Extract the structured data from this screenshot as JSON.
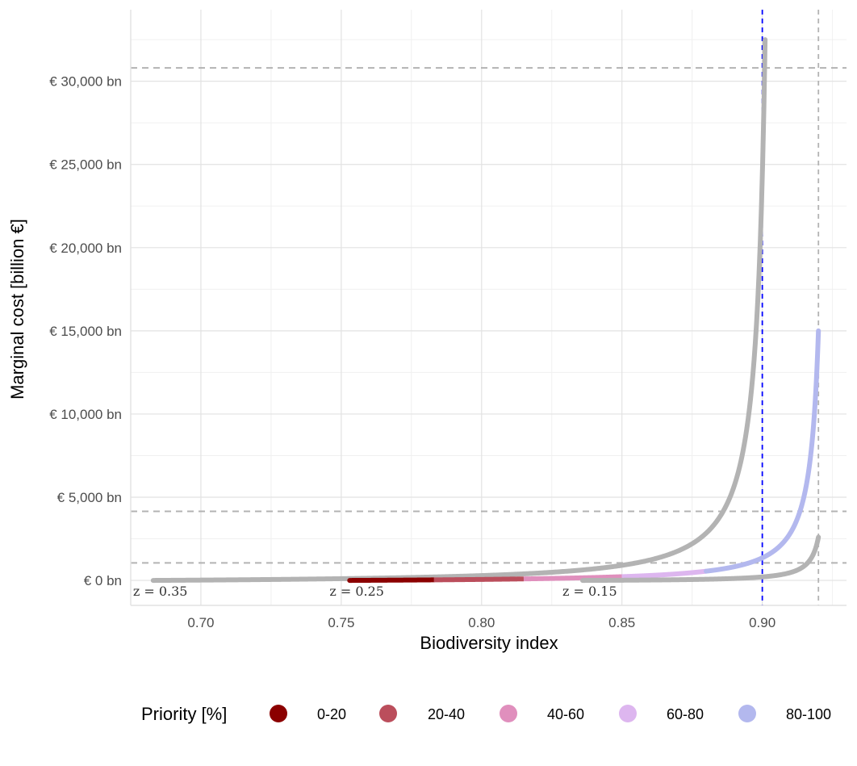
{
  "chart_data": {
    "type": "line",
    "title": "",
    "xlabel": "Biodiversity index",
    "ylabel": "Marginal cost [billion €]",
    "xlim": [
      0.675,
      0.93
    ],
    "ylim": [
      -1500,
      34300
    ],
    "x_ticks": [
      0.7,
      0.75,
      0.8,
      0.85,
      0.9
    ],
    "x_tick_labels": [
      "0.70",
      "0.75",
      "0.80",
      "0.85",
      "0.90"
    ],
    "y_ticks": [
      0,
      5000,
      10000,
      15000,
      20000,
      25000,
      30000
    ],
    "y_tick_labels": [
      "€ 0 bn",
      "€ 5,000 bn",
      "€ 10,000 bn",
      "€ 15,000 bn",
      "€ 20,000 bn",
      "€ 25,000 bn",
      "€ 30,000 bn"
    ],
    "grid": true,
    "series": [
      {
        "label": "z = 0.35",
        "x_start": 0.683,
        "x_end": 0.901,
        "y_end": 32500,
        "priority_colored": false,
        "color": "#b3b3b3"
      },
      {
        "label": "z = 0.25",
        "x_start": 0.753,
        "x_end": 0.92,
        "y_end": 15000,
        "priority_colored": true,
        "color": "#b3b3b3"
      },
      {
        "label": "z = 0.15",
        "x_start": 0.836,
        "x_end": 0.92,
        "y_end": 2600,
        "priority_colored": false,
        "color": "#b3b3b3"
      }
    ],
    "priority_segments": [
      {
        "name": "0-20",
        "x_from": 0.753,
        "x_to": 0.783,
        "color": "#8b0000"
      },
      {
        "name": "20-40",
        "x_from": 0.783,
        "x_to": 0.815,
        "color": "#bb4e5c"
      },
      {
        "name": "40-60",
        "x_from": 0.815,
        "x_to": 0.85,
        "color": "#e08fbd"
      },
      {
        "name": "60-80",
        "x_from": 0.85,
        "x_to": 0.88,
        "color": "#ddb6ef"
      },
      {
        "name": "80-100",
        "x_from": 0.88,
        "x_to": 0.92,
        "color": "#b3b8ee"
      }
    ],
    "reference_lines": {
      "vertical": [
        {
          "x": 0.9,
          "color": "#0000ff",
          "style": "dashed"
        },
        {
          "x": 0.92,
          "color": "#b3b3b3",
          "style": "dashed"
        }
      ],
      "horizontal": [
        {
          "y": 30800,
          "color": "#b3b3b3",
          "style": "dashed"
        },
        {
          "y": 4150,
          "color": "#b3b3b3",
          "style": "dashed"
        },
        {
          "y": 1050,
          "color": "#b3b3b3",
          "style": "dashed"
        }
      ]
    },
    "legend": {
      "title": "Priority [%]",
      "position": "bottom",
      "entries": [
        {
          "label": "0-20",
          "color": "#8b0000"
        },
        {
          "label": "20-40",
          "color": "#bb4e5c"
        },
        {
          "label": "40-60",
          "color": "#e08fbd"
        },
        {
          "label": "60-80",
          "color": "#ddb6ef"
        },
        {
          "label": "80-100",
          "color": "#b3b8ee"
        }
      ]
    }
  }
}
